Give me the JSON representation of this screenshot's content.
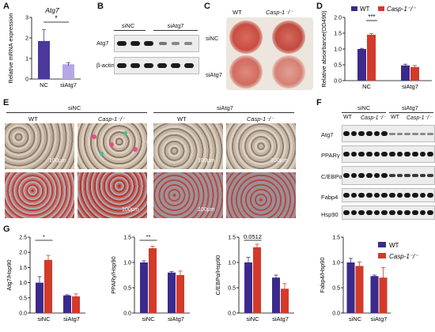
{
  "panels": {
    "A": {
      "letter": "A",
      "title": "Atg7",
      "ylabel": "Relative mRNA expression",
      "sig": "*"
    },
    "B": {
      "letter": "B",
      "groups": [
        "siNC",
        "siAtg7"
      ],
      "rows": [
        "Atg7",
        "β-actin"
      ]
    },
    "C": {
      "letter": "C",
      "cols": [
        "WT",
        "Casp-1⁻/⁻"
      ],
      "rows": [
        "siNC",
        "siAtg7"
      ]
    },
    "D": {
      "letter": "D",
      "legend": [
        "WT",
        "Casp-1⁻/⁻"
      ],
      "ylabel": "Relative absorbance(OD490)",
      "sig": "***"
    },
    "E": {
      "letter": "E",
      "groups": [
        "siNC",
        "siAtg7"
      ],
      "cols": [
        "WT",
        "Casp-1⁻/⁻",
        "WT",
        "Casp-1⁻/⁻"
      ],
      "scale": "100μm"
    },
    "F": {
      "letter": "F",
      "groups": [
        "siNC",
        "siAtg7"
      ],
      "subgroups": [
        "WT",
        "Casp-1⁻/⁻",
        "WT",
        "Casp-1⁻/⁻"
      ],
      "rows": [
        "Atg7",
        "PPARγ",
        "C/EBPα",
        "Fabp4",
        "Hsp90"
      ]
    },
    "G": {
      "letter": "G",
      "legend": [
        "WT",
        "Casp-1⁻/⁻"
      ],
      "ylabels": [
        "Atg7/Hsp90",
        "PPARγ/Hsp90",
        "C/EBPα/Hsp90",
        "Fabp4/Hsp90"
      ],
      "sigs": [
        "*",
        "**",
        "0.0512",
        ""
      ]
    }
  },
  "colors": {
    "wt": "#3b2a8c",
    "ko": "#d23a2a",
    "bar_grey": "#4b3a9c"
  },
  "chart_data": [
    {
      "type": "bar",
      "title": "Atg7",
      "xlabel": "",
      "ylabel": "Relative mRNA expression",
      "categories": [
        "NC",
        "siAtg7"
      ],
      "values": [
        1.85,
        0.72
      ],
      "errors": [
        0.55,
        0.08
      ],
      "ylim": [
        0,
        3
      ],
      "yticks": [
        0,
        1,
        2,
        3
      ]
    },
    {
      "type": "bar",
      "ylabel": "Relative absorbance(OD490)",
      "categories": [
        "NC",
        "siAtg7"
      ],
      "series": [
        {
          "name": "WT",
          "values": [
            1.0,
            0.48
          ],
          "errors": [
            0.02,
            0.04
          ]
        },
        {
          "name": "Casp-1⁻/⁻",
          "values": [
            1.45,
            0.43
          ],
          "errors": [
            0.04,
            0.05
          ]
        }
      ],
      "ylim": [
        0,
        2
      ],
      "yticks": [
        0,
        0.5,
        1.0,
        1.5,
        2.0
      ]
    },
    {
      "type": "bar",
      "ylabel": "Atg7/Hsp90",
      "categories": [
        "siNC",
        "siAtg7"
      ],
      "series": [
        {
          "name": "WT",
          "values": [
            1.0,
            0.58
          ],
          "errors": [
            0.2,
            0.02
          ]
        },
        {
          "name": "Casp-1⁻/⁻",
          "values": [
            1.75,
            0.55
          ],
          "errors": [
            0.15,
            0.08
          ]
        }
      ],
      "ylim": [
        0,
        2.5
      ],
      "yticks": [
        0.0,
        0.5,
        1.0,
        1.5,
        2.0,
        2.5
      ]
    },
    {
      "type": "bar",
      "ylabel": "PPARγ/Hsp90",
      "categories": [
        "siNC",
        "siAtg7"
      ],
      "series": [
        {
          "name": "WT",
          "values": [
            1.0,
            0.8
          ],
          "errors": [
            0.03,
            0.02
          ]
        },
        {
          "name": "Casp-1⁻/⁻",
          "values": [
            1.28,
            0.75
          ],
          "errors": [
            0.04,
            0.08
          ]
        }
      ],
      "ylim": [
        0,
        1.5
      ],
      "yticks": [
        0.0,
        0.5,
        1.0,
        1.5
      ]
    },
    {
      "type": "bar",
      "ylabel": "C/EBPα/Hsp90",
      "categories": [
        "siNC",
        "siAtg7"
      ],
      "series": [
        {
          "name": "WT",
          "values": [
            1.0,
            0.7
          ],
          "errors": [
            0.1,
            0.05
          ]
        },
        {
          "name": "Casp-1⁻/⁻",
          "values": [
            1.3,
            0.48
          ],
          "errors": [
            0.06,
            0.1
          ]
        }
      ],
      "ylim": [
        0,
        1.5
      ],
      "yticks": [
        0.0,
        0.5,
        1.0,
        1.5
      ]
    },
    {
      "type": "bar",
      "ylabel": "Fabp4/Hsp90",
      "categories": [
        "siNC",
        "siAtg7"
      ],
      "series": [
        {
          "name": "WT",
          "values": [
            1.0,
            0.73
          ],
          "errors": [
            0.08,
            0.02
          ]
        },
        {
          "name": "Casp-1⁻/⁻",
          "values": [
            0.93,
            0.7
          ],
          "errors": [
            0.08,
            0.2
          ]
        }
      ],
      "ylim": [
        0,
        1.5
      ],
      "yticks": [
        0.0,
        0.5,
        1.0,
        1.5
      ]
    }
  ]
}
